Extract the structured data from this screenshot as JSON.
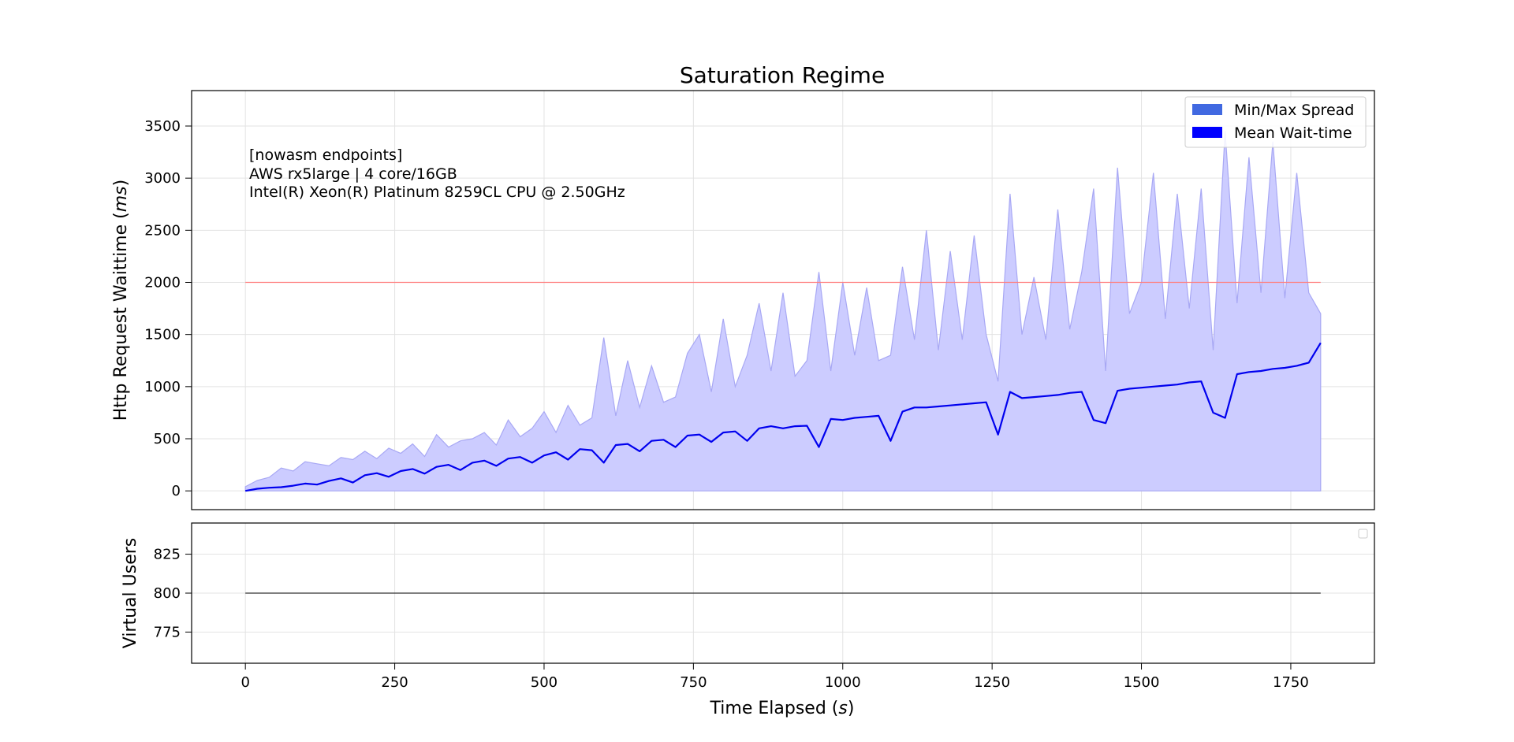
{
  "chart_data": [
    {
      "type": "area",
      "title": "Saturation Regime",
      "ylabel": "Http Request Waittime (ms)",
      "ylabel_parts": [
        "Http Request Waittime (",
        "ms",
        ")"
      ],
      "xlim": [
        -90,
        1890
      ],
      "ylim": [
        -180,
        3840
      ],
      "xticks": [
        0,
        250,
        500,
        750,
        1000,
        1250,
        1500,
        1750
      ],
      "yticks": [
        0,
        500,
        1000,
        1500,
        2000,
        2500,
        3000,
        3500
      ],
      "grid": true,
      "legend_placement": "top-right",
      "legend": [
        {
          "label": "Min/Max Spread",
          "color": "#4169e1"
        },
        {
          "label": "Mean Wait-time",
          "color": "#0000ff"
        }
      ],
      "annotation_lines": [
        "[nowasm endpoints]",
        "AWS rx5large | 4 core/16GB",
        "Intel(R) Xeon(R) Platinum 8259CL CPU @ 2.50GHz"
      ],
      "threshold_line": {
        "y": 2000,
        "x": [
          0,
          1800
        ],
        "color": "#ff8080"
      },
      "colors": {
        "spread_fill": "#ccccff",
        "spread_edge": "#a8a8f4",
        "mean_line": "#0000ee"
      },
      "series": [
        {
          "name": "Mean Wait-time",
          "kind": "line",
          "x": [
            0,
            20,
            40,
            60,
            80,
            100,
            120,
            140,
            160,
            180,
            200,
            220,
            240,
            260,
            280,
            300,
            320,
            340,
            360,
            380,
            400,
            420,
            440,
            460,
            480,
            500,
            520,
            540,
            560,
            580,
            600,
            620,
            640,
            660,
            680,
            700,
            720,
            740,
            760,
            780,
            800,
            820,
            840,
            860,
            880,
            900,
            920,
            940,
            960,
            980,
            1000,
            1020,
            1040,
            1060,
            1080,
            1100,
            1120,
            1140,
            1160,
            1180,
            1200,
            1220,
            1240,
            1260,
            1280,
            1300,
            1320,
            1340,
            1360,
            1380,
            1400,
            1420,
            1440,
            1460,
            1480,
            1500,
            1520,
            1540,
            1560,
            1580,
            1600,
            1620,
            1640,
            1660,
            1680,
            1700,
            1720,
            1740,
            1760,
            1780,
            1800
          ],
          "y": [
            0,
            20,
            30,
            35,
            50,
            70,
            60,
            95,
            120,
            80,
            150,
            170,
            135,
            190,
            210,
            165,
            230,
            250,
            200,
            270,
            290,
            240,
            310,
            325,
            270,
            340,
            370,
            300,
            400,
            390,
            270,
            440,
            450,
            380,
            480,
            490,
            420,
            530,
            540,
            470,
            560,
            570,
            480,
            600,
            620,
            600,
            620,
            625,
            420,
            690,
            680,
            700,
            710,
            720,
            480,
            760,
            800,
            800,
            810,
            820,
            830,
            840,
            850,
            540,
            950,
            890,
            900,
            910,
            920,
            940,
            950,
            680,
            650,
            960,
            980,
            990,
            1000,
            1010,
            1020,
            1040,
            1050,
            750,
            700,
            1120,
            1140,
            1150,
            1170,
            1180,
            1200,
            1230,
            1420
          ]
        },
        {
          "name": "Min/Max Spread",
          "kind": "band",
          "x": [
            0,
            20,
            40,
            60,
            80,
            100,
            120,
            140,
            160,
            180,
            200,
            220,
            240,
            260,
            280,
            300,
            320,
            340,
            360,
            380,
            400,
            420,
            440,
            460,
            480,
            500,
            520,
            540,
            560,
            580,
            600,
            620,
            640,
            660,
            680,
            700,
            720,
            740,
            760,
            780,
            800,
            820,
            840,
            860,
            880,
            900,
            920,
            940,
            960,
            980,
            1000,
            1020,
            1040,
            1060,
            1080,
            1100,
            1120,
            1140,
            1160,
            1180,
            1200,
            1220,
            1240,
            1260,
            1280,
            1300,
            1320,
            1340,
            1360,
            1380,
            1400,
            1420,
            1440,
            1460,
            1480,
            1500,
            1520,
            1540,
            1560,
            1580,
            1600,
            1620,
            1640,
            1660,
            1680,
            1700,
            1720,
            1740,
            1760,
            1780,
            1800
          ],
          "low": [
            0,
            0,
            0,
            0,
            0,
            0,
            0,
            0,
            0,
            0,
            0,
            0,
            0,
            0,
            0,
            0,
            0,
            0,
            0,
            0,
            0,
            0,
            0,
            0,
            0,
            0,
            0,
            0,
            0,
            0,
            0,
            0,
            0,
            0,
            0,
            0,
            0,
            0,
            0,
            0,
            0,
            0,
            0,
            0,
            0,
            0,
            0,
            0,
            0,
            0,
            0,
            0,
            0,
            0,
            0,
            0,
            0,
            0,
            0,
            0,
            0,
            0,
            0,
            0,
            0,
            0,
            0,
            0,
            0,
            0,
            0,
            0,
            0,
            0,
            0,
            0,
            0,
            0,
            0,
            0,
            0,
            0,
            0,
            0,
            0,
            0,
            0,
            0,
            0,
            0,
            0
          ],
          "high": [
            40,
            100,
            130,
            220,
            190,
            280,
            260,
            240,
            320,
            300,
            380,
            310,
            410,
            360,
            450,
            330,
            540,
            420,
            480,
            500,
            560,
            440,
            680,
            520,
            600,
            760,
            560,
            820,
            630,
            700,
            1470,
            720,
            1250,
            800,
            1200,
            850,
            900,
            1320,
            1500,
            950,
            1650,
            1000,
            1300,
            1800,
            1150,
            1900,
            1100,
            1250,
            2100,
            1150,
            2000,
            1300,
            1950,
            1250,
            1300,
            2150,
            1450,
            2500,
            1350,
            2300,
            1450,
            2450,
            1500,
            1050,
            2850,
            1500,
            2050,
            1450,
            2700,
            1550,
            2100,
            2900,
            1150,
            3100,
            1700,
            2000,
            3050,
            1650,
            2850,
            1750,
            2900,
            1350,
            3450,
            1800,
            3200,
            1900,
            3350,
            1850,
            3050,
            1900,
            1700
          ]
        },
        {
          "name": "Virtual Users",
          "kind": "line",
          "ylabel": "Virtual Users",
          "xlabel": "Time Elapsed (s)",
          "xlabel_parts": [
            "Time Elapsed (",
            "s",
            ")"
          ],
          "xlim": [
            -90,
            1890
          ],
          "ylim": [
            755,
            845
          ],
          "xticks": [
            0,
            250,
            500,
            750,
            1000,
            1250,
            1500,
            1750
          ],
          "yticks": [
            775,
            800,
            825
          ],
          "x": [
            0,
            1800
          ],
          "y": [
            800,
            800
          ]
        }
      ]
    }
  ]
}
